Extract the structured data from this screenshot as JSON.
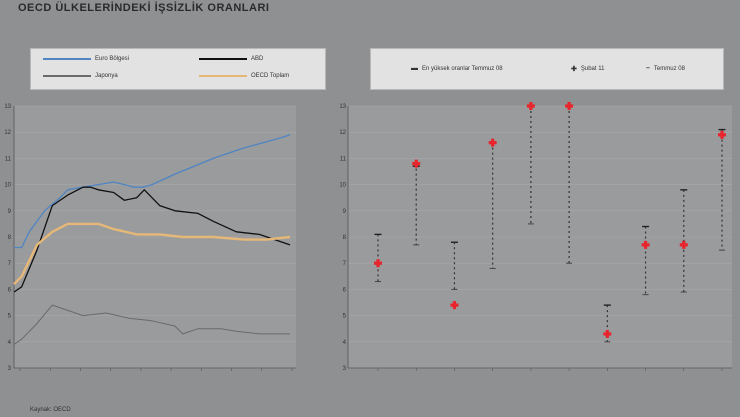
{
  "title": "OECD ÜLKELERİNDEKİ İŞSİZLİK ORANLARI",
  "source": "Kaynak: OECD",
  "colors": {
    "euro": "#4f85c2",
    "usa": "#111111",
    "japan": "#6a6a6a",
    "oecd": "#e6b877",
    "marker": "#e8242c"
  },
  "legend_left": {
    "euro": "Euro Bölgesi",
    "japan": "Japonya",
    "usa": "ABD",
    "oecd": "OECD Toplam"
  },
  "legend_right": {
    "worst": "En yüksek oranlar Temmuz 08",
    "current": "Şubat 11",
    "july08": "Temmuz 08"
  },
  "chart_data": [
    {
      "type": "line",
      "ylim": [
        3,
        13
      ],
      "yticks": [
        "3",
        "4",
        "5",
        "6",
        "7",
        "8",
        "9",
        "10",
        "11",
        "12",
        "13"
      ],
      "xticks": [
        "",
        "",
        "",
        "",
        "",
        "",
        "",
        "",
        "",
        ""
      ],
      "series": [
        {
          "name": "Euro Bölgesi",
          "key": "euro",
          "points": [
            [
              0,
              7.6
            ],
            [
              0.05,
              7.6
            ],
            [
              0.1,
              8.2
            ],
            [
              0.2,
              9.0
            ],
            [
              0.3,
              9.5
            ],
            [
              0.35,
              9.8
            ],
            [
              0.45,
              9.9
            ],
            [
              0.55,
              10.0
            ],
            [
              0.65,
              10.1
            ],
            [
              0.72,
              10.0
            ],
            [
              0.78,
              9.9
            ],
            [
              0.84,
              9.9
            ],
            [
              0.9,
              10.0
            ],
            [
              1.05,
              10.4
            ],
            [
              1.3,
              11.0
            ],
            [
              1.5,
              11.4
            ],
            [
              1.75,
              11.8
            ],
            [
              1.8,
              11.9
            ]
          ]
        },
        {
          "name": "ABD",
          "key": "usa",
          "points": [
            [
              0,
              5.9
            ],
            [
              0.05,
              6.1
            ],
            [
              0.15,
              7.5
            ],
            [
              0.25,
              9.2
            ],
            [
              0.35,
              9.6
            ],
            [
              0.45,
              9.9
            ],
            [
              0.5,
              9.9
            ],
            [
              0.55,
              9.8
            ],
            [
              0.65,
              9.7
            ],
            [
              0.72,
              9.4
            ],
            [
              0.8,
              9.5
            ],
            [
              0.85,
              9.8
            ],
            [
              0.95,
              9.2
            ],
            [
              1.05,
              9.0
            ],
            [
              1.2,
              8.9
            ],
            [
              1.3,
              8.6
            ],
            [
              1.45,
              8.2
            ],
            [
              1.6,
              8.1
            ],
            [
              1.7,
              7.9
            ],
            [
              1.8,
              7.7
            ]
          ]
        },
        {
          "name": "Japonya",
          "key": "japan",
          "points": [
            [
              0,
              3.9
            ],
            [
              0.05,
              4.1
            ],
            [
              0.15,
              4.7
            ],
            [
              0.25,
              5.4
            ],
            [
              0.35,
              5.2
            ],
            [
              0.45,
              5.0
            ],
            [
              0.6,
              5.1
            ],
            [
              0.75,
              4.9
            ],
            [
              0.9,
              4.8
            ],
            [
              1.05,
              4.6
            ],
            [
              1.1,
              4.3
            ],
            [
              1.2,
              4.5
            ],
            [
              1.35,
              4.5
            ],
            [
              1.45,
              4.4
            ],
            [
              1.6,
              4.3
            ],
            [
              1.8,
              4.3
            ]
          ]
        },
        {
          "name": "OECD Toplam",
          "key": "oecd",
          "points": [
            [
              0,
              6.2
            ],
            [
              0.05,
              6.5
            ],
            [
              0.15,
              7.7
            ],
            [
              0.25,
              8.2
            ],
            [
              0.35,
              8.5
            ],
            [
              0.45,
              8.5
            ],
            [
              0.55,
              8.5
            ],
            [
              0.65,
              8.3
            ],
            [
              0.8,
              8.1
            ],
            [
              0.95,
              8.1
            ],
            [
              1.1,
              8.0
            ],
            [
              1.3,
              8.0
            ],
            [
              1.5,
              7.9
            ],
            [
              1.65,
              7.9
            ],
            [
              1.8,
              8.0
            ]
          ]
        }
      ]
    },
    {
      "type": "scatter",
      "ylim": [
        3,
        13
      ],
      "yticks": [
        "3",
        "4",
        "5",
        "6",
        "7",
        "8",
        "9",
        "10",
        "11",
        "12",
        "13"
      ],
      "categories": [
        "",
        "",
        "",
        "",
        "",
        "",
        "",
        "",
        "",
        ""
      ],
      "series": [
        {
          "name": "En yüksek oranlar Temmuz 08",
          "key": "worst",
          "values": [
            8.1,
            10.7,
            7.8,
            11.6,
            13.0,
            13.0,
            5.4,
            8.4,
            9.8,
            12.1
          ]
        },
        {
          "name": "Şubat 11",
          "key": "current",
          "values": [
            7.0,
            10.8,
            5.4,
            11.6,
            13.0,
            13.0,
            4.3,
            7.7,
            7.7,
            11.9
          ]
        },
        {
          "name": "Temmuz 08",
          "key": "july08",
          "values": [
            6.3,
            7.7,
            6.0,
            6.8,
            8.5,
            7.0,
            4.0,
            5.8,
            5.9,
            7.5
          ]
        }
      ]
    }
  ]
}
